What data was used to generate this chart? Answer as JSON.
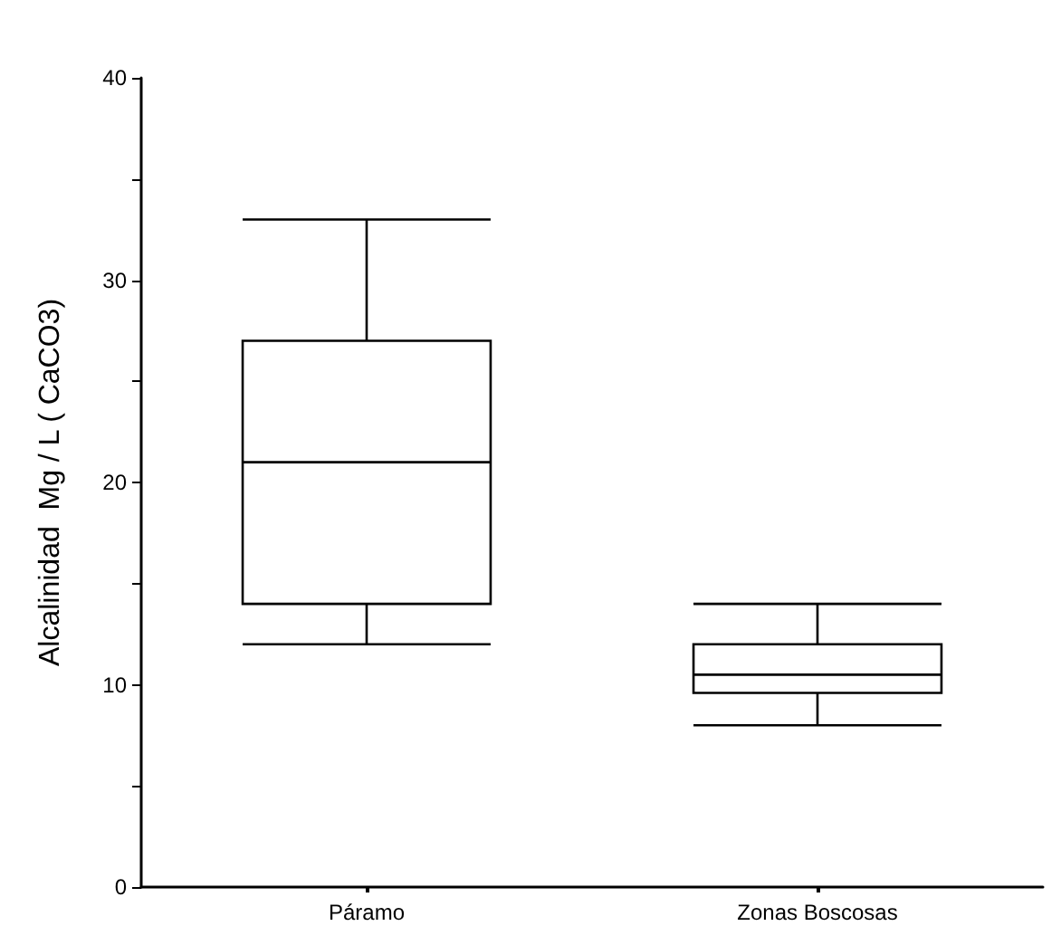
{
  "chart_data": {
    "type": "box",
    "ylabel": "Alcalinidad  Mg / L ( CaCO3)",
    "categories": [
      "Páramo",
      "Zonas Boscosas"
    ],
    "boxes": [
      {
        "low": 12,
        "q1": 14,
        "median": 21,
        "q3": 27,
        "high": 33
      },
      {
        "low": 8,
        "q1": 9.6,
        "median": 10.5,
        "q3": 12,
        "high": 14
      }
    ],
    "ylim": [
      0,
      40
    ],
    "yticks": [
      0,
      {
        "value": 5,
        "label": null
      },
      10,
      {
        "value": 15,
        "label": null
      },
      20,
      {
        "value": 25,
        "label": null
      },
      30,
      {
        "value": 35,
        "label": null
      },
      40
    ],
    "grid": false
  }
}
